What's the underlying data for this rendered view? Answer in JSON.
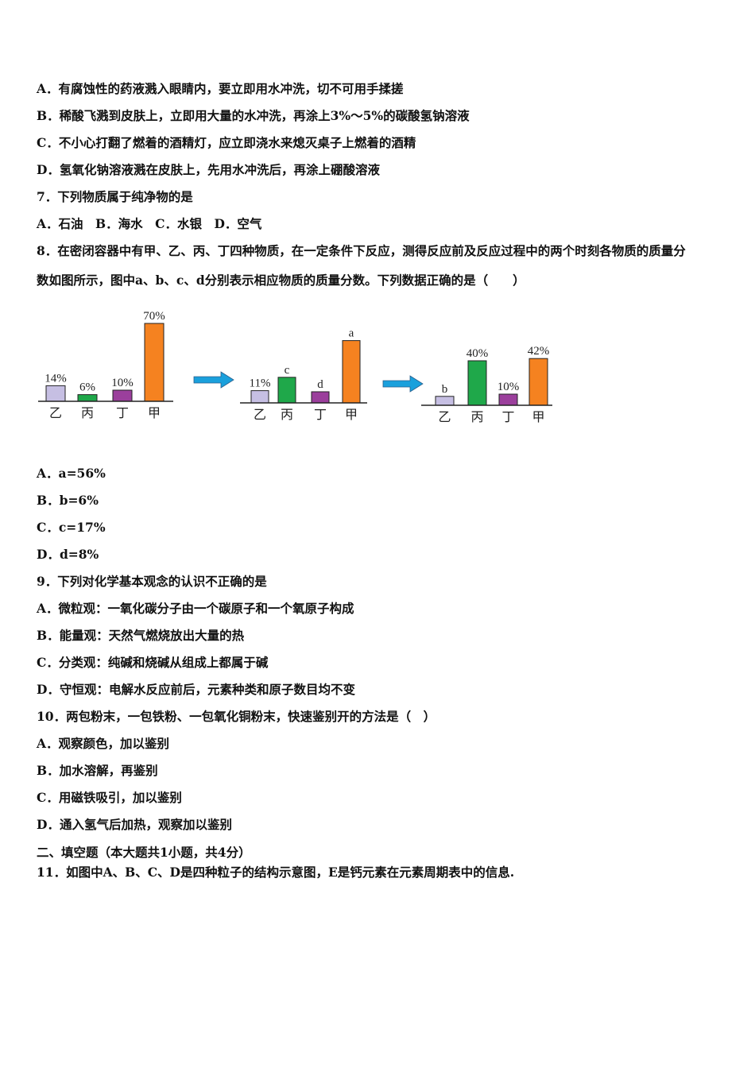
{
  "lines_top": [
    "A．有腐蚀性的药液溅入眼睛内，要立即用水冲洗，切不可用手揉搓",
    "B．稀酸飞溅到皮肤上，立即用大量的水冲洗，再涂上3%～5%的碳酸氢钠溶液",
    "C．不小心打翻了燃着的酒精灯，应立即浇水来熄灭桌子上燃着的酒精",
    "D．氢氧化钠溶液溅在皮肤上，先用水冲洗后，再涂上硼酸溶液",
    "7．下列物质属于纯净物的是",
    "A．石油　B．海水　C．水银　D．空气",
    "8．在密闭容器中有甲、乙、丙、丁四种物质，在一定条件下反应，测得反应前及反应过程中的两个时刻各物质的质量分",
    "数如图所示，图中a、b、c、d分别表示相应物质的质量分数。下列数据正确的是（　　）"
  ],
  "lines_bottom": [
    "A．a=56%",
    "B．b=6%",
    "C．c=17%",
    "D．d=8%",
    "9．下列对化学基本观念的认识不正确的是",
    "A．微粒观：一氧化碳分子由一个碳原子和一个氧原子构成",
    "B．能量观：天然气燃烧放出大量的热",
    "C．分类观：纯碱和烧碱从组成上都属于碱",
    "D．守恒观：电解水反应前后，元素种类和原子数目均不变",
    "10．两包粉末，一包铁粉、一包氧化铜粉末，快速鉴别开的方法是（　）",
    "A．观察颜色，加以鉴别",
    "B．加水溶解，再鉴别",
    "C．用磁铁吸引，加以鉴别",
    "D．通入氢气后加热，观察加以鉴别",
    "二、填空题（本大题共1小题，共4分）",
    "11．如图中A、B、C、D是四种粒子的结构示意图，E是钙元素在元素周期表中的信息."
  ],
  "chart_data": [
    {
      "type": "bar",
      "categories": [
        "乙",
        "丙",
        "丁",
        "甲"
      ],
      "values": [
        14,
        6,
        10,
        70
      ],
      "labels": [
        "14%",
        "6%",
        "10%",
        "70%"
      ]
    },
    {
      "type": "bar",
      "categories": [
        "乙",
        "丙",
        "丁",
        "甲"
      ],
      "values": [
        11,
        23,
        10,
        56
      ],
      "labels": [
        "11%",
        "c",
        "d",
        "a"
      ]
    },
    {
      "type": "bar",
      "categories": [
        "乙",
        "丙",
        "丁",
        "甲"
      ],
      "values": [
        8,
        40,
        10,
        42
      ],
      "labels": [
        "b",
        "40%",
        "10%",
        "42%"
      ]
    }
  ],
  "colors": {
    "乙": "#c6bfe3",
    "丙": "#1fa84a",
    "丁": "#9b3f9c",
    "甲": "#f58220",
    "arrow": "#1aa0dc"
  },
  "arrow_icon": "right-arrow"
}
